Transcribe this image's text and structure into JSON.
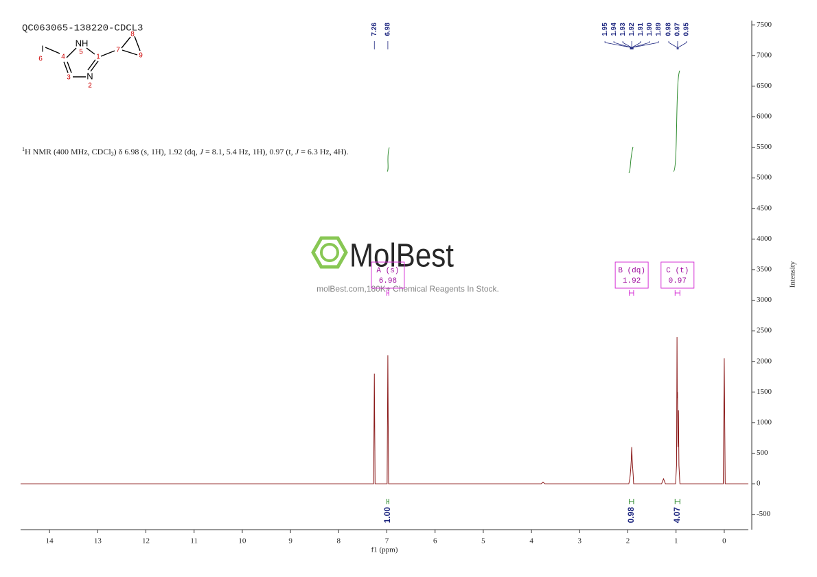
{
  "header": {
    "title": "QC063065-138220-CDCL3"
  },
  "molecule": {
    "atoms": [
      {
        "number": "1"
      },
      {
        "label": "N",
        "number": "2"
      },
      {
        "number": "3"
      },
      {
        "number": "4"
      },
      {
        "label": "NH",
        "number": "5"
      },
      {
        "label": "I",
        "number": "6"
      },
      {
        "number": "7"
      },
      {
        "number": "8"
      },
      {
        "number": "9"
      }
    ]
  },
  "description": [
    "1",
    "H NMR (400 MHz, CDCl",
    "3",
    ") δ 6.98 (s, 1H), 1.92 (dq, ",
    "J",
    " = 8.1, 5.4 Hz, 1H), 0.97 (t, ",
    "J",
    " = 6.3 Hz, 4H)."
  ],
  "watermark": {
    "brand": "MolBest",
    "tagline": "molBest.com,180K+ Chemical Reagents In Stock."
  },
  "chart_data": {
    "type": "line",
    "xlabel": "f1 (ppm)",
    "ylabel": "Intensity",
    "x": [
      14.6,
      7.4,
      7.275,
      7.26,
      7.245,
      7.0,
      6.995,
      6.98,
      6.965,
      3.8,
      3.76,
      3.72,
      1.98,
      1.96,
      1.95,
      1.94,
      1.93,
      1.92,
      1.91,
      1.9,
      1.89,
      1.88,
      1.3,
      1.26,
      1.22,
      1.01,
      0.99,
      0.98,
      0.975,
      0.97,
      0.96,
      0.95,
      0.94,
      0.92,
      0.02,
      0,
      -0.02,
      -0.5
    ],
    "series": [
      {
        "color": "#8b1a1a",
        "values": [
          0,
          0,
          0,
          1800,
          0,
          0,
          0,
          2100,
          0,
          0,
          25,
          0,
          0,
          80,
          150,
          250,
          380,
          600,
          400,
          260,
          150,
          0,
          0,
          80,
          0,
          0,
          300,
          2400,
          1400,
          1500,
          600,
          1200,
          300,
          0,
          0,
          2050,
          0,
          0
        ]
      }
    ],
    "xlim": [
      14.6,
      -0.5
    ],
    "xticks": [
      14,
      13,
      12,
      11,
      10,
      9,
      8,
      7,
      6,
      5,
      4,
      3,
      2,
      1,
      0
    ],
    "ylim": [
      -750,
      7570
    ],
    "yticks": [
      -500,
      0,
      500,
      1000,
      1500,
      2000,
      2500,
      3000,
      3500,
      4000,
      4500,
      5000,
      5500,
      6000,
      6500,
      7000,
      7500
    ],
    "peaks": [
      7.26,
      6.98,
      1.95,
      1.94,
      1.93,
      1.92,
      1.91,
      {
        "value": 1.9,
        "label": "1.90"
      },
      1.89,
      0.98,
      0.97,
      0.95
    ],
    "integrals": [
      {
        "range": [
          7.0,
          6.96
        ],
        "value": 1,
        "label": "1.00"
      },
      {
        "range": [
          1.97,
          1.88
        ],
        "value": 0.98,
        "label": "0.98"
      },
      {
        "range": [
          1.02,
          0.92
        ],
        "value": 4.07,
        "label": "4.07"
      }
    ],
    "multiplets": [
      {
        "label": "A (s)",
        "shift": 6.98,
        "range": [
          7.0,
          6.96
        ]
      },
      {
        "label": "B (dq)",
        "shift": 1.92,
        "range": [
          1.97,
          1.88
        ]
      },
      {
        "label": "C (t)",
        "shift": 0.97,
        "range": [
          1.02,
          0.92
        ]
      }
    ]
  }
}
